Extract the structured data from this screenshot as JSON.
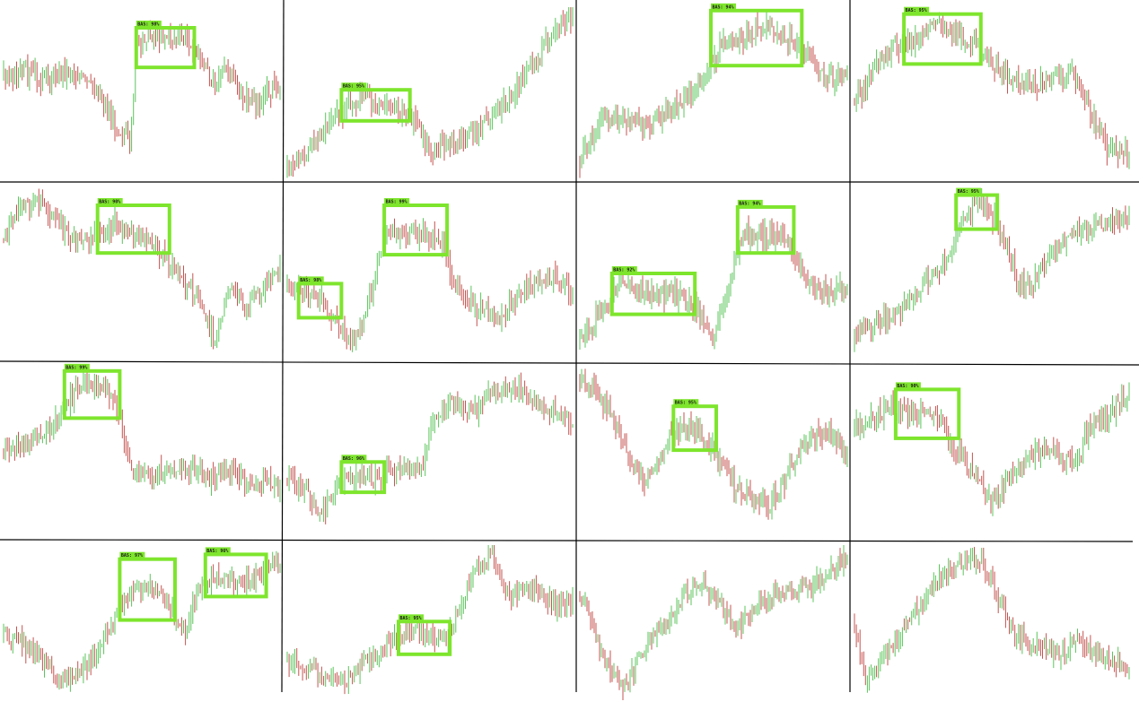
{
  "colors": {
    "up": "#5cc45c",
    "down": "#c45450",
    "box": "#7ee52d",
    "label_bg": "#7ee52d",
    "divider": "#000000"
  },
  "chart_data": {
    "type": "candlestick-grid",
    "rows": 4,
    "cols": 4,
    "panels": [
      {
        "id": "r1c1",
        "path": [
          [
            0,
            0.4
          ],
          [
            0.08,
            0.38
          ],
          [
            0.15,
            0.42
          ],
          [
            0.24,
            0.37
          ],
          [
            0.34,
            0.5
          ],
          [
            0.42,
            0.72
          ],
          [
            0.46,
            0.78
          ],
          [
            0.48,
            0.22
          ],
          [
            0.52,
            0.16
          ],
          [
            0.6,
            0.18
          ],
          [
            0.68,
            0.2
          ],
          [
            0.75,
            0.42
          ],
          [
            0.82,
            0.37
          ],
          [
            0.86,
            0.52
          ],
          [
            0.92,
            0.56
          ],
          [
            1,
            0.44
          ]
        ],
        "boxes": [
          {
            "x0": 0.48,
            "x1": 0.69,
            "y0": 0.12,
            "y1": 0.35,
            "label": "BAS: 98%"
          }
        ]
      },
      {
        "id": "r1c2",
        "path": [
          [
            0,
            0.95
          ],
          [
            0.1,
            0.78
          ],
          [
            0.18,
            0.62
          ],
          [
            0.26,
            0.52
          ],
          [
            0.36,
            0.6
          ],
          [
            0.44,
            0.64
          ],
          [
            0.5,
            0.82
          ],
          [
            0.62,
            0.78
          ],
          [
            0.72,
            0.62
          ],
          [
            0.8,
            0.48
          ],
          [
            0.88,
            0.3
          ],
          [
            0.94,
            0.1
          ],
          [
            1,
            0.06
          ]
        ],
        "boxes": [
          {
            "x0": 0.19,
            "x1": 0.43,
            "y0": 0.48,
            "y1": 0.66,
            "label": "BAS: 95%"
          }
        ]
      },
      {
        "id": "r1c3",
        "path": [
          [
            0,
            0.9
          ],
          [
            0.08,
            0.62
          ],
          [
            0.16,
            0.66
          ],
          [
            0.26,
            0.7
          ],
          [
            0.34,
            0.58
          ],
          [
            0.42,
            0.5
          ],
          [
            0.48,
            0.36
          ],
          [
            0.54,
            0.2
          ],
          [
            0.62,
            0.18
          ],
          [
            0.7,
            0.08
          ],
          [
            0.78,
            0.18
          ],
          [
            0.84,
            0.24
          ],
          [
            0.9,
            0.4
          ],
          [
            0.95,
            0.42
          ],
          [
            1,
            0.34
          ]
        ],
        "boxes": [
          {
            "x0": 0.49,
            "x1": 0.83,
            "y0": 0.02,
            "y1": 0.34,
            "label": "BAS: 94%"
          }
        ]
      },
      {
        "id": "r1c4",
        "path": [
          [
            0,
            0.55
          ],
          [
            0.06,
            0.4
          ],
          [
            0.14,
            0.24
          ],
          [
            0.22,
            0.18
          ],
          [
            0.3,
            0.1
          ],
          [
            0.38,
            0.16
          ],
          [
            0.44,
            0.22
          ],
          [
            0.5,
            0.32
          ],
          [
            0.56,
            0.4
          ],
          [
            0.64,
            0.46
          ],
          [
            0.72,
            0.42
          ],
          [
            0.78,
            0.36
          ],
          [
            0.82,
            0.48
          ],
          [
            0.86,
            0.62
          ],
          [
            0.92,
            0.82
          ],
          [
            1,
            0.84
          ]
        ],
        "boxes": [
          {
            "x0": 0.18,
            "x1": 0.46,
            "y0": 0.04,
            "y1": 0.33,
            "label": "BAS: 95%"
          }
        ]
      },
      {
        "id": "r2c1",
        "path": [
          [
            0,
            0.3
          ],
          [
            0.06,
            0.1
          ],
          [
            0.14,
            0.08
          ],
          [
            0.2,
            0.22
          ],
          [
            0.28,
            0.34
          ],
          [
            0.34,
            0.28
          ],
          [
            0.4,
            0.2
          ],
          [
            0.48,
            0.28
          ],
          [
            0.56,
            0.36
          ],
          [
            0.62,
            0.48
          ],
          [
            0.7,
            0.64
          ],
          [
            0.76,
            0.88
          ],
          [
            0.82,
            0.6
          ],
          [
            0.88,
            0.7
          ],
          [
            0.94,
            0.58
          ],
          [
            1,
            0.48
          ]
        ],
        "boxes": [
          {
            "x0": 0.34,
            "x1": 0.6,
            "y0": 0.1,
            "y1": 0.38,
            "label": "BAS: 90%"
          }
        ]
      },
      {
        "id": "r2c2",
        "path": [
          [
            0,
            0.58
          ],
          [
            0.06,
            0.6
          ],
          [
            0.12,
            0.66
          ],
          [
            0.18,
            0.8
          ],
          [
            0.24,
            0.88
          ],
          [
            0.3,
            0.58
          ],
          [
            0.34,
            0.28
          ],
          [
            0.4,
            0.28
          ],
          [
            0.48,
            0.26
          ],
          [
            0.54,
            0.3
          ],
          [
            0.58,
            0.54
          ],
          [
            0.66,
            0.7
          ],
          [
            0.74,
            0.76
          ],
          [
            0.82,
            0.62
          ],
          [
            0.9,
            0.5
          ],
          [
            1,
            0.6
          ]
        ],
        "boxes": [
          {
            "x0": 0.04,
            "x1": 0.19,
            "y0": 0.56,
            "y1": 0.76,
            "label": "BAS: 98%"
          },
          {
            "x0": 0.34,
            "x1": 0.56,
            "y0": 0.1,
            "y1": 0.39,
            "label": "BAS: 99%"
          }
        ]
      },
      {
        "id": "r2c3",
        "path": [
          [
            0,
            0.9
          ],
          [
            0.08,
            0.72
          ],
          [
            0.16,
            0.56
          ],
          [
            0.26,
            0.62
          ],
          [
            0.36,
            0.62
          ],
          [
            0.44,
            0.72
          ],
          [
            0.5,
            0.88
          ],
          [
            0.54,
            0.7
          ],
          [
            0.58,
            0.4
          ],
          [
            0.62,
            0.26
          ],
          [
            0.7,
            0.28
          ],
          [
            0.76,
            0.26
          ],
          [
            0.8,
            0.4
          ],
          [
            0.86,
            0.58
          ],
          [
            0.92,
            0.62
          ],
          [
            1,
            0.58
          ]
        ],
        "boxes": [
          {
            "x0": 0.12,
            "x1": 0.43,
            "y0": 0.5,
            "y1": 0.74,
            "label": "BAS: 92%"
          },
          {
            "x0": 0.59,
            "x1": 0.8,
            "y0": 0.11,
            "y1": 0.38,
            "label": "BAS: 94%"
          }
        ]
      },
      {
        "id": "r2c4",
        "path": [
          [
            0,
            0.9
          ],
          [
            0.08,
            0.78
          ],
          [
            0.16,
            0.74
          ],
          [
            0.24,
            0.58
          ],
          [
            0.3,
            0.5
          ],
          [
            0.36,
            0.34
          ],
          [
            0.4,
            0.14
          ],
          [
            0.46,
            0.08
          ],
          [
            0.52,
            0.2
          ],
          [
            0.56,
            0.38
          ],
          [
            0.6,
            0.56
          ],
          [
            0.64,
            0.58
          ],
          [
            0.7,
            0.4
          ],
          [
            0.78,
            0.28
          ],
          [
            0.86,
            0.24
          ],
          [
            0.92,
            0.18
          ],
          [
            1,
            0.14
          ]
        ],
        "boxes": [
          {
            "x0": 0.37,
            "x1": 0.52,
            "y0": 0.04,
            "y1": 0.24,
            "label": "BAS: 95%"
          }
        ]
      },
      {
        "id": "r3c1",
        "path": [
          [
            0,
            0.5
          ],
          [
            0.08,
            0.44
          ],
          [
            0.14,
            0.4
          ],
          [
            0.2,
            0.3
          ],
          [
            0.26,
            0.14
          ],
          [
            0.32,
            0.1
          ],
          [
            0.38,
            0.16
          ],
          [
            0.42,
            0.28
          ],
          [
            0.46,
            0.62
          ],
          [
            0.52,
            0.66
          ],
          [
            0.6,
            0.6
          ],
          [
            0.68,
            0.62
          ],
          [
            0.74,
            0.66
          ],
          [
            0.82,
            0.62
          ],
          [
            0.9,
            0.68
          ],
          [
            1,
            0.7
          ]
        ],
        "boxes": [
          {
            "x0": 0.22,
            "x1": 0.42,
            "y0": 0.02,
            "y1": 0.3,
            "label": "BAS: 99%"
          }
        ]
      },
      {
        "id": "r3c2",
        "path": [
          [
            0,
            0.66
          ],
          [
            0.06,
            0.72
          ],
          [
            0.12,
            0.88
          ],
          [
            0.18,
            0.7
          ],
          [
            0.24,
            0.64
          ],
          [
            0.3,
            0.66
          ],
          [
            0.36,
            0.62
          ],
          [
            0.42,
            0.6
          ],
          [
            0.48,
            0.56
          ],
          [
            0.52,
            0.28
          ],
          [
            0.58,
            0.2
          ],
          [
            0.66,
            0.26
          ],
          [
            0.72,
            0.14
          ],
          [
            0.8,
            0.1
          ],
          [
            0.88,
            0.2
          ],
          [
            0.94,
            0.28
          ],
          [
            1,
            0.3
          ]
        ],
        "boxes": [
          {
            "x0": 0.19,
            "x1": 0.34,
            "y0": 0.56,
            "y1": 0.74,
            "label": "BAS: 96%"
          }
        ]
      },
      {
        "id": "r3c3",
        "path": [
          [
            0,
            0.1
          ],
          [
            0.06,
            0.14
          ],
          [
            0.12,
            0.28
          ],
          [
            0.18,
            0.5
          ],
          [
            0.24,
            0.68
          ],
          [
            0.3,
            0.56
          ],
          [
            0.34,
            0.4
          ],
          [
            0.4,
            0.34
          ],
          [
            0.46,
            0.4
          ],
          [
            0.52,
            0.56
          ],
          [
            0.58,
            0.7
          ],
          [
            0.64,
            0.76
          ],
          [
            0.7,
            0.84
          ],
          [
            0.76,
            0.7
          ],
          [
            0.82,
            0.48
          ],
          [
            0.88,
            0.4
          ],
          [
            0.94,
            0.38
          ],
          [
            1,
            0.52
          ]
        ],
        "boxes": [
          {
            "x0": 0.35,
            "x1": 0.51,
            "y0": 0.23,
            "y1": 0.49,
            "label": "BAS: 95%"
          }
        ]
      },
      {
        "id": "r3c4",
        "path": [
          [
            0,
            0.36
          ],
          [
            0.06,
            0.3
          ],
          [
            0.12,
            0.24
          ],
          [
            0.2,
            0.26
          ],
          [
            0.3,
            0.3
          ],
          [
            0.38,
            0.52
          ],
          [
            0.44,
            0.64
          ],
          [
            0.5,
            0.82
          ],
          [
            0.56,
            0.66
          ],
          [
            0.62,
            0.54
          ],
          [
            0.7,
            0.5
          ],
          [
            0.76,
            0.54
          ],
          [
            0.82,
            0.56
          ],
          [
            0.84,
            0.4
          ],
          [
            0.88,
            0.3
          ],
          [
            0.94,
            0.26
          ],
          [
            1,
            0.14
          ]
        ],
        "boxes": [
          {
            "x0": 0.15,
            "x1": 0.38,
            "y0": 0.13,
            "y1": 0.42,
            "label": "BAS: 90%"
          }
        ]
      },
      {
        "id": "r4c1",
        "path": [
          [
            0,
            0.56
          ],
          [
            0.06,
            0.62
          ],
          [
            0.14,
            0.74
          ],
          [
            0.22,
            0.86
          ],
          [
            0.28,
            0.82
          ],
          [
            0.34,
            0.7
          ],
          [
            0.4,
            0.48
          ],
          [
            0.46,
            0.3
          ],
          [
            0.54,
            0.28
          ],
          [
            0.6,
            0.4
          ],
          [
            0.66,
            0.58
          ],
          [
            0.7,
            0.3
          ],
          [
            0.76,
            0.2
          ],
          [
            0.84,
            0.24
          ],
          [
            0.9,
            0.22
          ],
          [
            0.96,
            0.14
          ],
          [
            1,
            0.1
          ]
        ],
        "boxes": [
          {
            "x0": 0.42,
            "x1": 0.62,
            "y0": 0.09,
            "y1": 0.48,
            "label": "BAS: 97%"
          },
          {
            "x0": 0.73,
            "x1": 0.95,
            "y0": 0.06,
            "y1": 0.33,
            "label": "BAS: 96%"
          }
        ]
      },
      {
        "id": "r4c2",
        "path": [
          [
            0,
            0.74
          ],
          [
            0.08,
            0.8
          ],
          [
            0.14,
            0.86
          ],
          [
            0.2,
            0.9
          ],
          [
            0.26,
            0.76
          ],
          [
            0.34,
            0.66
          ],
          [
            0.4,
            0.58
          ],
          [
            0.48,
            0.56
          ],
          [
            0.56,
            0.6
          ],
          [
            0.6,
            0.4
          ],
          [
            0.66,
            0.18
          ],
          [
            0.72,
            0.06
          ],
          [
            0.78,
            0.34
          ],
          [
            0.86,
            0.26
          ],
          [
            0.94,
            0.4
          ],
          [
            1,
            0.34
          ]
        ],
        "boxes": [
          {
            "x0": 0.39,
            "x1": 0.57,
            "y0": 0.49,
            "y1": 0.7,
            "label": "BAS: 95%"
          }
        ]
      },
      {
        "id": "r4c3",
        "path": [
          [
            0,
            0.3
          ],
          [
            0.06,
            0.6
          ],
          [
            0.1,
            0.76
          ],
          [
            0.16,
            0.9
          ],
          [
            0.22,
            0.74
          ],
          [
            0.28,
            0.56
          ],
          [
            0.34,
            0.46
          ],
          [
            0.4,
            0.3
          ],
          [
            0.46,
            0.26
          ],
          [
            0.52,
            0.36
          ],
          [
            0.58,
            0.54
          ],
          [
            0.64,
            0.46
          ],
          [
            0.7,
            0.34
          ],
          [
            0.78,
            0.3
          ],
          [
            0.86,
            0.28
          ],
          [
            0.94,
            0.16
          ],
          [
            1,
            0.06
          ]
        ],
        "boxes": []
      },
      {
        "id": "r4c4",
        "path": [
          [
            0,
            0.5
          ],
          [
            0.04,
            0.86
          ],
          [
            0.1,
            0.74
          ],
          [
            0.18,
            0.54
          ],
          [
            0.26,
            0.34
          ],
          [
            0.34,
            0.16
          ],
          [
            0.4,
            0.1
          ],
          [
            0.46,
            0.08
          ],
          [
            0.52,
            0.32
          ],
          [
            0.58,
            0.58
          ],
          [
            0.66,
            0.64
          ],
          [
            0.74,
            0.7
          ],
          [
            0.82,
            0.6
          ],
          [
            0.9,
            0.72
          ],
          [
            0.96,
            0.76
          ],
          [
            1,
            0.78
          ]
        ],
        "boxes": []
      }
    ]
  }
}
